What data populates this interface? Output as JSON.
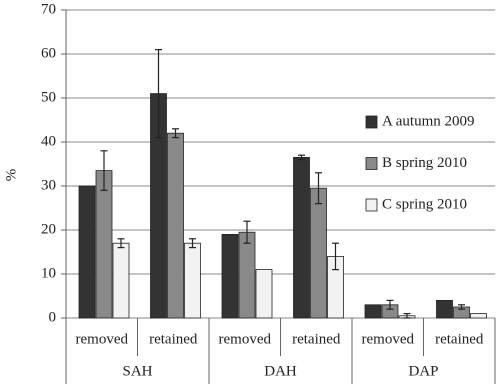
{
  "chart_data": {
    "type": "bar",
    "y_label": "%",
    "categories": [
      "removed",
      "retained",
      "removed",
      "retained",
      "removed",
      "retained"
    ],
    "groups": [
      "SAH",
      "DAH",
      "DAP"
    ],
    "series": [
      {
        "name": "A autumn 2009",
        "color": "#333333",
        "values": [
          30,
          51,
          19,
          36.5,
          3,
          4
        ],
        "errors": [
          null,
          10,
          null,
          0.5,
          null,
          null
        ]
      },
      {
        "name": "B spring 2010",
        "color": "#898989",
        "values": [
          33.5,
          42,
          19.5,
          29.5,
          3,
          2.5
        ],
        "errors": [
          4.5,
          1,
          2.5,
          3.5,
          1,
          0.5
        ]
      },
      {
        "name": "C spring 2010",
        "color": "#f2f2f2",
        "values": [
          17,
          17,
          11,
          14,
          0.5,
          1
        ],
        "errors": [
          1,
          1,
          null,
          3,
          0.5,
          null
        ]
      }
    ],
    "ylim": [
      0,
      70
    ],
    "yticks": [
      0,
      10,
      20,
      30,
      40,
      50,
      60,
      70
    ],
    "grid": true,
    "legend": "right"
  }
}
